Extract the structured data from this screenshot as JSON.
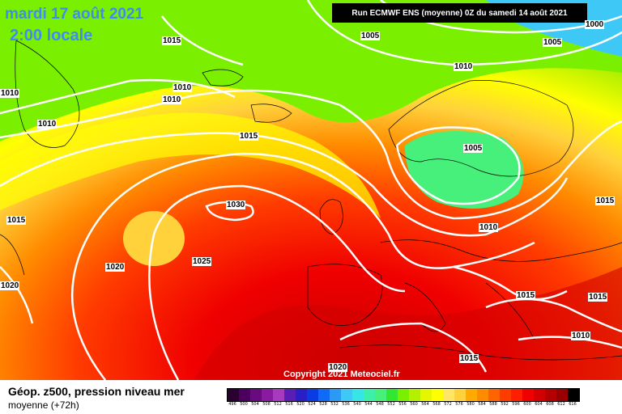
{
  "header": {
    "date": "mardi 17 août 2021",
    "time": "2:00 locale",
    "run": "Run ECMWF ENS (moyenne) 0Z du samedi 14 août 2021"
  },
  "map": {
    "copyright": "Copyright 2021 Meteociel.fr",
    "isobar_labels": [
      "1000",
      "1005",
      "1005",
      "1015",
      "1010",
      "1010",
      "1010",
      "1010",
      "1010",
      "1015",
      "1005",
      "1030",
      "1015",
      "1020",
      "1020",
      "1025",
      "1010",
      "1015",
      "1015",
      "1015",
      "1010",
      "1015",
      "1020"
    ]
  },
  "legend": {
    "title": "Géop. z500, pression niveau mer",
    "subtitle": "moyenne  (+72h)",
    "scale_values": [
      "496",
      "500",
      "504",
      "508",
      "512",
      "516",
      "520",
      "524",
      "528",
      "532",
      "536",
      "540",
      "544",
      "548",
      "552",
      "556",
      "560",
      "564",
      "568",
      "572",
      "576",
      "580",
      "584",
      "588",
      "592",
      "596",
      "600",
      "604",
      "608",
      "612",
      "616"
    ],
    "scale_colors": [
      "#2a0030",
      "#4b0060",
      "#6a0a80",
      "#8a1aa0",
      "#a83ac0",
      "#5a1eb4",
      "#2a1ec8",
      "#0a3ce6",
      "#0f6af5",
      "#2a9af5",
      "#3ec8f5",
      "#36e6e6",
      "#3cf0aa",
      "#46f07a",
      "#32e632",
      "#7af000",
      "#b4f000",
      "#e6f500",
      "#ffff00",
      "#ffe664",
      "#ffd23c",
      "#ffaa00",
      "#ff8c00",
      "#ff6400",
      "#ff3c00",
      "#ff1e00",
      "#f00000",
      "#d20000",
      "#b40000",
      "#960000",
      "#000000"
    ]
  },
  "colors": {
    "title_blue": "#3d8cf0",
    "isobar": "#ffffff",
    "land_outline": "#000000"
  }
}
